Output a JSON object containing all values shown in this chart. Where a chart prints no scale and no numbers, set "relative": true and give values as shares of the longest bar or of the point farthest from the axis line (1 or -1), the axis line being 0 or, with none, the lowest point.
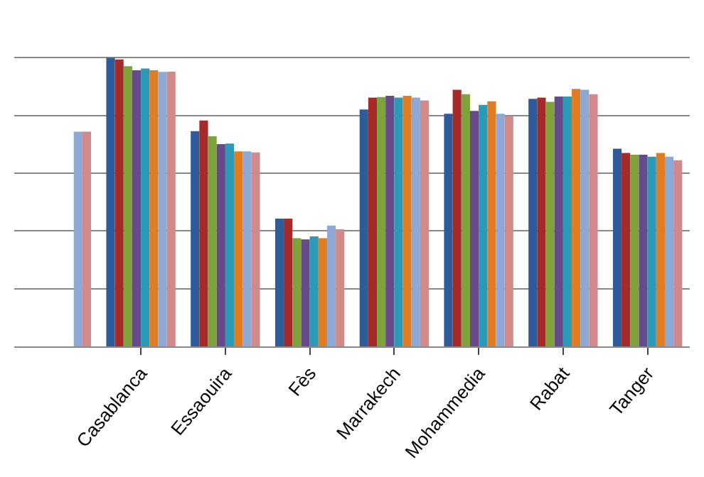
{
  "chart_data": {
    "type": "bar",
    "relative": true,
    "grid": "y",
    "categories": [
      null,
      "Casablanca",
      "Essaouira",
      "Fès",
      "Marrakech",
      "Mohammedia",
      "Rabat",
      "Tanger"
    ],
    "series": [
      {
        "color": "#2e5b9a",
        "values": [
          null,
          1,
          0.746,
          0.443,
          0.821,
          0.806,
          0.858,
          0.685
        ]
      },
      {
        "color": "#a52a2a",
        "values": [
          null,
          0.994,
          0.783,
          0.443,
          0.862,
          0.889,
          0.862,
          0.67
        ]
      },
      {
        "color": "#7fa33a",
        "values": [
          null,
          0.971,
          0.728,
          0.375,
          0.864,
          0.874,
          0.847,
          0.664
        ]
      },
      {
        "color": "#664a8a",
        "values": [
          null,
          0.957,
          0.701,
          0.371,
          0.868,
          0.816,
          0.866,
          0.664
        ]
      },
      {
        "color": "#2a9ab8",
        "values": [
          null,
          0.963,
          0.703,
          0.381,
          0.862,
          0.837,
          0.866,
          0.657
        ]
      },
      {
        "color": "#e07c22",
        "values": [
          null,
          0.957,
          0.676,
          0.375,
          0.868,
          0.849,
          0.892,
          0.67
        ]
      },
      {
        "color": "#8ea8d6",
        "values": [
          0.744,
          0.951,
          0.676,
          0.419,
          0.862,
          0.806,
          0.889,
          0.657
        ]
      },
      {
        "color": "#d08a8a",
        "values": [
          0.744,
          0.952,
          0.672,
          0.406,
          0.852,
          0.798,
          0.874,
          0.645
        ]
      }
    ]
  }
}
